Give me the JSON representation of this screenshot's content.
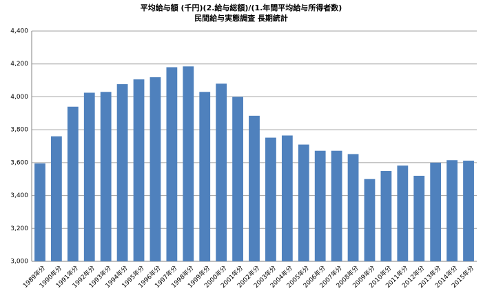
{
  "chart_data": {
    "type": "bar",
    "title": "平均給与額 (千円)(2.給与総額)/(1.年間平均給与所得者数)",
    "subtitle": "民間給与実態調査 長期統計",
    "categories": [
      "1989年分",
      "1990年分",
      "1991年分",
      "1992年分",
      "1993年分",
      "1994年分",
      "1995年分",
      "1996年分",
      "1997年分",
      "1998年分",
      "1999年分",
      "2000年分",
      "2001年分",
      "2002年分",
      "2003年分",
      "2004年分",
      "2005年分",
      "2006年分",
      "2007年分",
      "2008年分",
      "2009年分",
      "2010年分",
      "2011年分",
      "2012年分",
      "2013年分",
      "2014年分",
      "2015年分"
    ],
    "values": [
      3595,
      3760,
      3940,
      4025,
      4030,
      4077,
      4106,
      4119,
      4180,
      4185,
      4030,
      4080,
      4000,
      3885,
      3752,
      3765,
      3710,
      3672,
      3672,
      3652,
      3500,
      3549,
      3582,
      3520,
      3600,
      3615,
      3612
    ],
    "color": "#4f81bd",
    "ylim": [
      3000,
      4400
    ],
    "yticks": [
      {
        "value": 3000,
        "label": "3,000"
      },
      {
        "value": 3200,
        "label": "3,200"
      },
      {
        "value": 3400,
        "label": "3,400"
      },
      {
        "value": 3600,
        "label": "3,600"
      },
      {
        "value": 3800,
        "label": "3,800"
      },
      {
        "value": 4000,
        "label": "4,000"
      },
      {
        "value": 4200,
        "label": "4,200"
      },
      {
        "value": 4400,
        "label": "4,400"
      }
    ],
    "grid": true
  }
}
